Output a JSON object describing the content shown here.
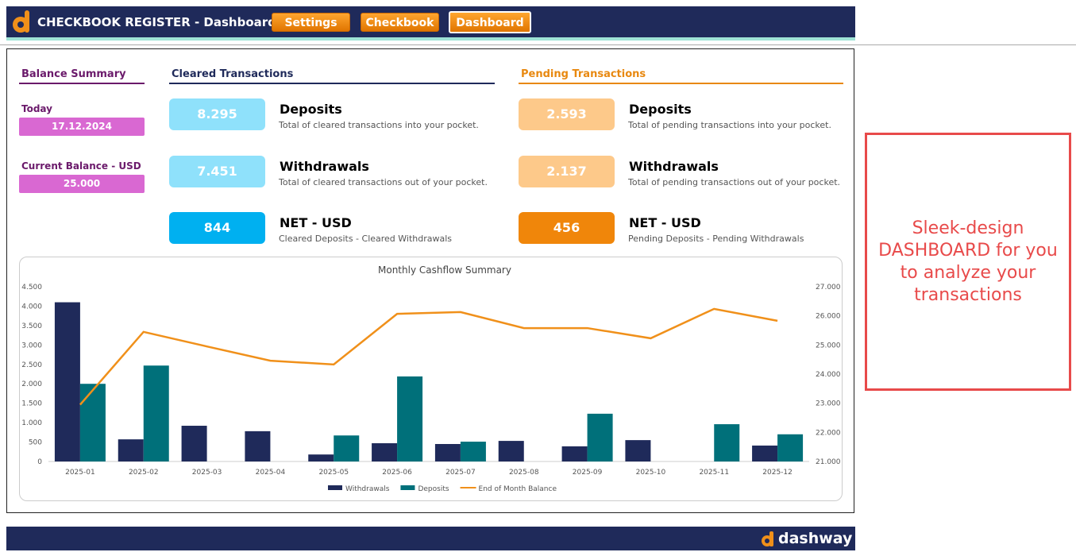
{
  "header": {
    "title": "CHECKBOOK REGISTER - Dashboard",
    "tabs": [
      "Settings",
      "Checkbook",
      "Dashboard"
    ]
  },
  "balance_summary": {
    "title": "Balance Summary",
    "today_label": "Today",
    "today": "17.12.2024",
    "balance_label": "Current Balance - USD",
    "balance": "25.000"
  },
  "cleared": {
    "title": "Cleared Transactions",
    "cards": [
      {
        "value": "8.295",
        "label": "Deposits",
        "description": "Total of cleared transactions into your pocket."
      },
      {
        "value": "7.451",
        "label": "Withdrawals",
        "description": "Total of cleared transactions out of your pocket."
      },
      {
        "value": "844",
        "label": "NET - USD",
        "description": "Cleared Deposits - Cleared Withdrawals"
      }
    ]
  },
  "pending": {
    "title": "Pending Transactions",
    "cards": [
      {
        "value": "2.593",
        "label": "Deposits",
        "description": "Total of pending transactions into your pocket."
      },
      {
        "value": "2.137",
        "label": "Withdrawals",
        "description": "Total of pending transactions out of your pocket."
      },
      {
        "value": "456",
        "label": "NET - USD",
        "description": "Pending Deposits - Pending Withdrawals"
      }
    ]
  },
  "chart_data": {
    "type": "bar",
    "title": "Monthly Cashflow Summary",
    "categories": [
      "2025-01",
      "2025-02",
      "2025-03",
      "2025-04",
      "2025-05",
      "2025-06",
      "2025-07",
      "2025-08",
      "2025-09",
      "2025-10",
      "2025-11",
      "2025-12"
    ],
    "series": [
      {
        "name": "Withdrawals",
        "color": "#1f2a5a",
        "values": [
          4100,
          570,
          920,
          780,
          180,
          470,
          450,
          530,
          390,
          550,
          0,
          410
        ]
      },
      {
        "name": "Deposits",
        "color": "#00707a",
        "values": [
          2000,
          2470,
          0,
          0,
          670,
          2190,
          510,
          0,
          1230,
          0,
          960,
          700
        ]
      },
      {
        "name": "End of Month Balance",
        "color": "#f0901a",
        "type": "line",
        "axis": "y2",
        "values": [
          22950,
          25450,
          24950,
          24460,
          24330,
          26070,
          26130,
          25580,
          25580,
          25230,
          26240,
          25830
        ]
      }
    ],
    "ylim": [
      0,
      4500
    ],
    "yticks": [
      0,
      500,
      {
        "value": 1000,
        "label": "1.000"
      },
      {
        "value": 1500,
        "label": "1.500"
      },
      {
        "value": 2000,
        "label": "2.000"
      },
      {
        "value": 2500,
        "label": "2.500"
      },
      {
        "value": 3000,
        "label": "3.000"
      },
      {
        "value": 3500,
        "label": "3.500"
      },
      {
        "value": 4000,
        "label": "4.000"
      },
      {
        "value": 4500,
        "label": "4.500"
      }
    ],
    "y2lim": [
      21000,
      27000
    ],
    "y2ticks": [
      {
        "value": 21000,
        "label": "21.000"
      },
      {
        "value": 22000,
        "label": "22.000"
      },
      {
        "value": 23000,
        "label": "23.000"
      },
      {
        "value": 24000,
        "label": "24.000"
      },
      {
        "value": 25000,
        "label": "25.000"
      },
      {
        "value": 26000,
        "label": "26.000"
      },
      {
        "value": 27000,
        "label": "27.000"
      }
    ],
    "legend": "bottom"
  },
  "callout": "Sleek-design DASHBOARD for you to analyze your transactions",
  "footer": {
    "brand": "dashway"
  }
}
